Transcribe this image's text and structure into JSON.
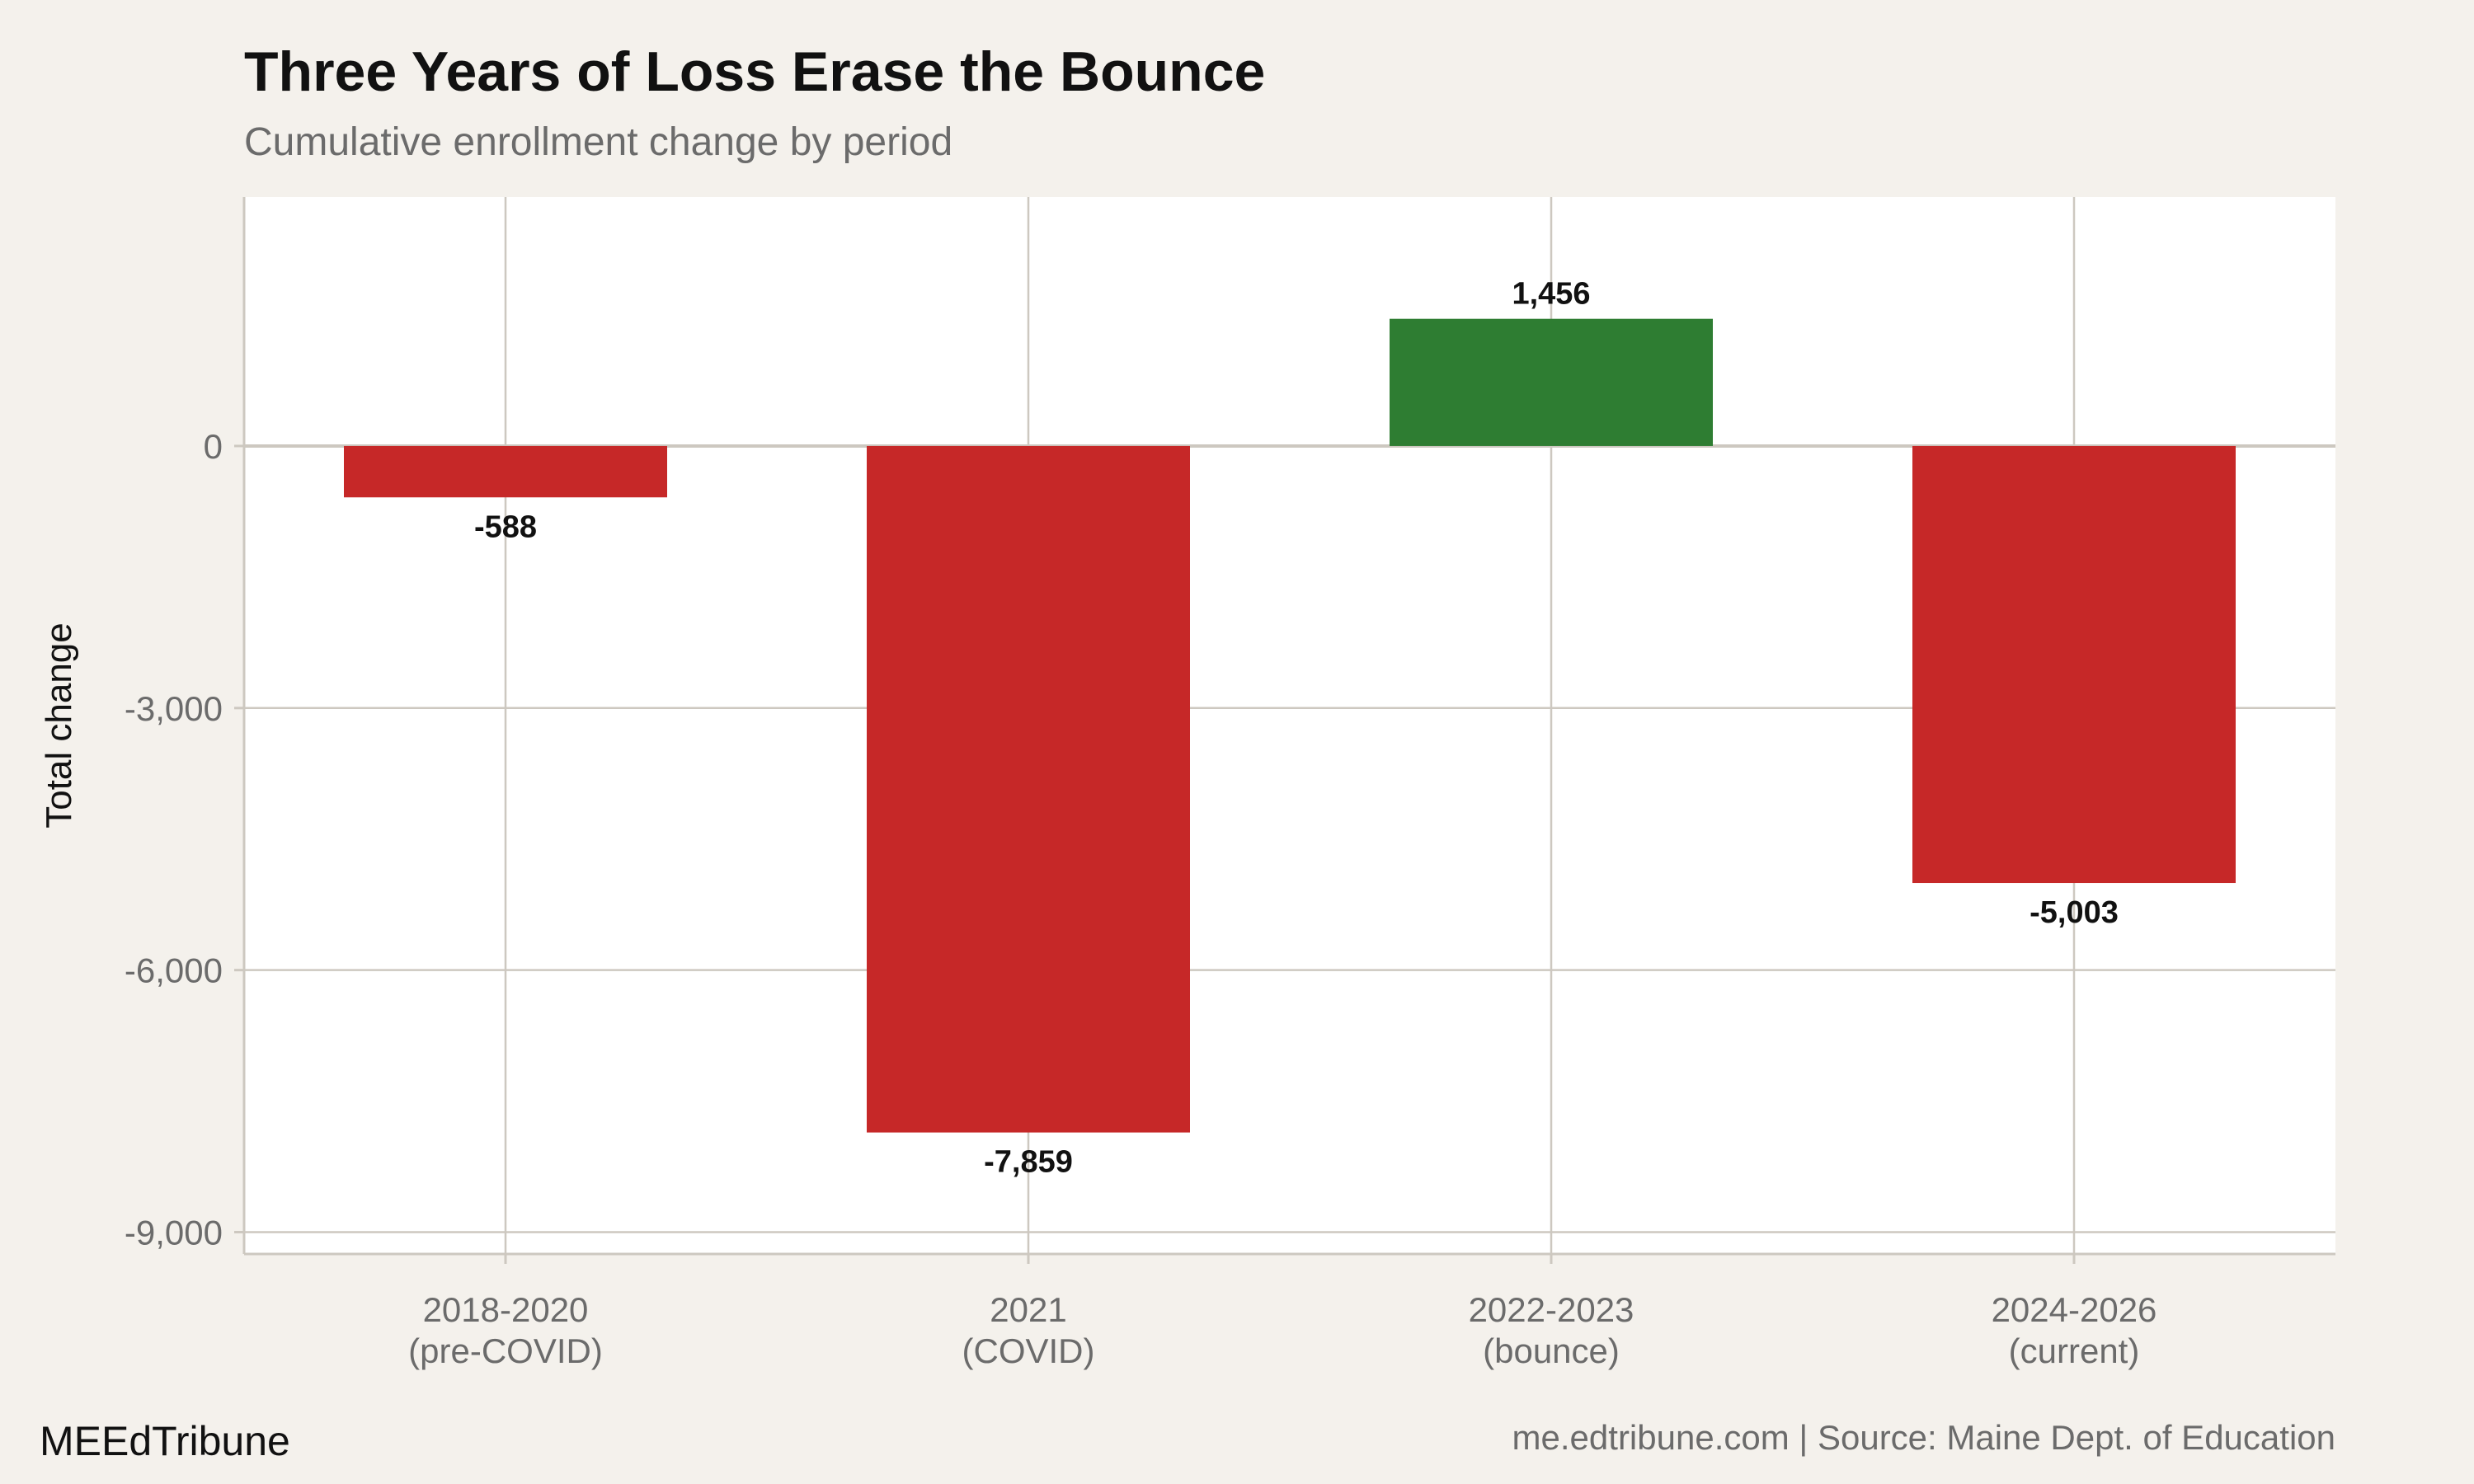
{
  "chart_data": {
    "type": "bar",
    "title": "Three Years of Loss Erase the Bounce",
    "subtitle": "Cumulative enrollment change by period",
    "xlabel": "",
    "ylabel": "Total change",
    "categories": [
      [
        "2018-2020",
        "(pre-COVID)"
      ],
      [
        "2021",
        "(COVID)"
      ],
      [
        "2022-2023",
        "(bounce)"
      ],
      [
        "2024-2026",
        "(current)"
      ]
    ],
    "values": [
      -588,
      -7859,
      1456,
      -5003
    ],
    "data_labels": [
      "-588",
      "-7,859",
      "1,456",
      "-5,003"
    ],
    "yticks": [
      0,
      -3000,
      -6000,
      -9000
    ],
    "ytick_labels": [
      "0",
      "-3,000",
      "-6,000",
      "-9,000"
    ],
    "ylim": [
      -9250,
      2850
    ],
    "grid": true,
    "colors": {
      "negative": "#c62828",
      "positive": "#2e7d32",
      "background": "#f4f1ec",
      "panel": "#ffffff",
      "grid": "#cdc8c0"
    }
  },
  "footer": {
    "brand": "MEEdTribune",
    "caption": "me.edtribune.com | Source: Maine Dept. of Education"
  }
}
